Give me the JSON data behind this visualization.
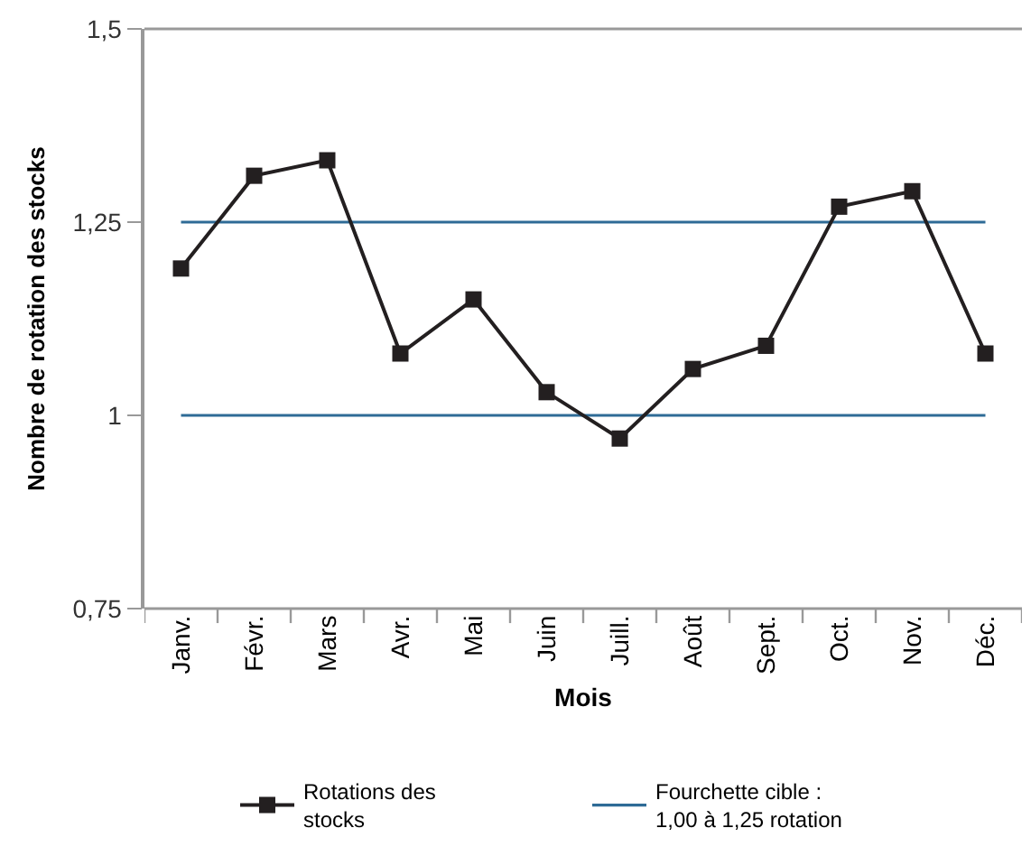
{
  "chart_data": {
    "type": "line",
    "xlabel": "Mois",
    "ylabel": "Nombre de rotation des stocks",
    "categories": [
      "Janv.",
      "Févr.",
      "Mars",
      "Avr.",
      "Mai",
      "Juin",
      "Juill.",
      "Août",
      "Sept.",
      "Oct.",
      "Nov.",
      "Déc."
    ],
    "series": [
      {
        "name": "Rotations des stocks",
        "color": "#231f20",
        "values": [
          1.19,
          1.31,
          1.33,
          1.08,
          1.15,
          1.03,
          0.97,
          1.06,
          1.09,
          1.27,
          1.29,
          1.08
        ]
      }
    ],
    "ylim": [
      0.75,
      1.5
    ],
    "yticks": [
      {
        "value": 0.75,
        "label": "0,75"
      },
      1,
      {
        "value": 1.25,
        "label": "1,25"
      },
      {
        "value": 1.5,
        "label": "1,5"
      }
    ],
    "ref_lines": [
      {
        "axis": "y",
        "value": 1.25,
        "label": "Fourchette cible : 1,00 à 1,25 rotation",
        "color": "#2e6b96"
      },
      {
        "axis": "y",
        "value": 1,
        "color": "#2e6b96"
      }
    ],
    "marker": "square",
    "line_style": "solid",
    "legend": "bottom"
  }
}
